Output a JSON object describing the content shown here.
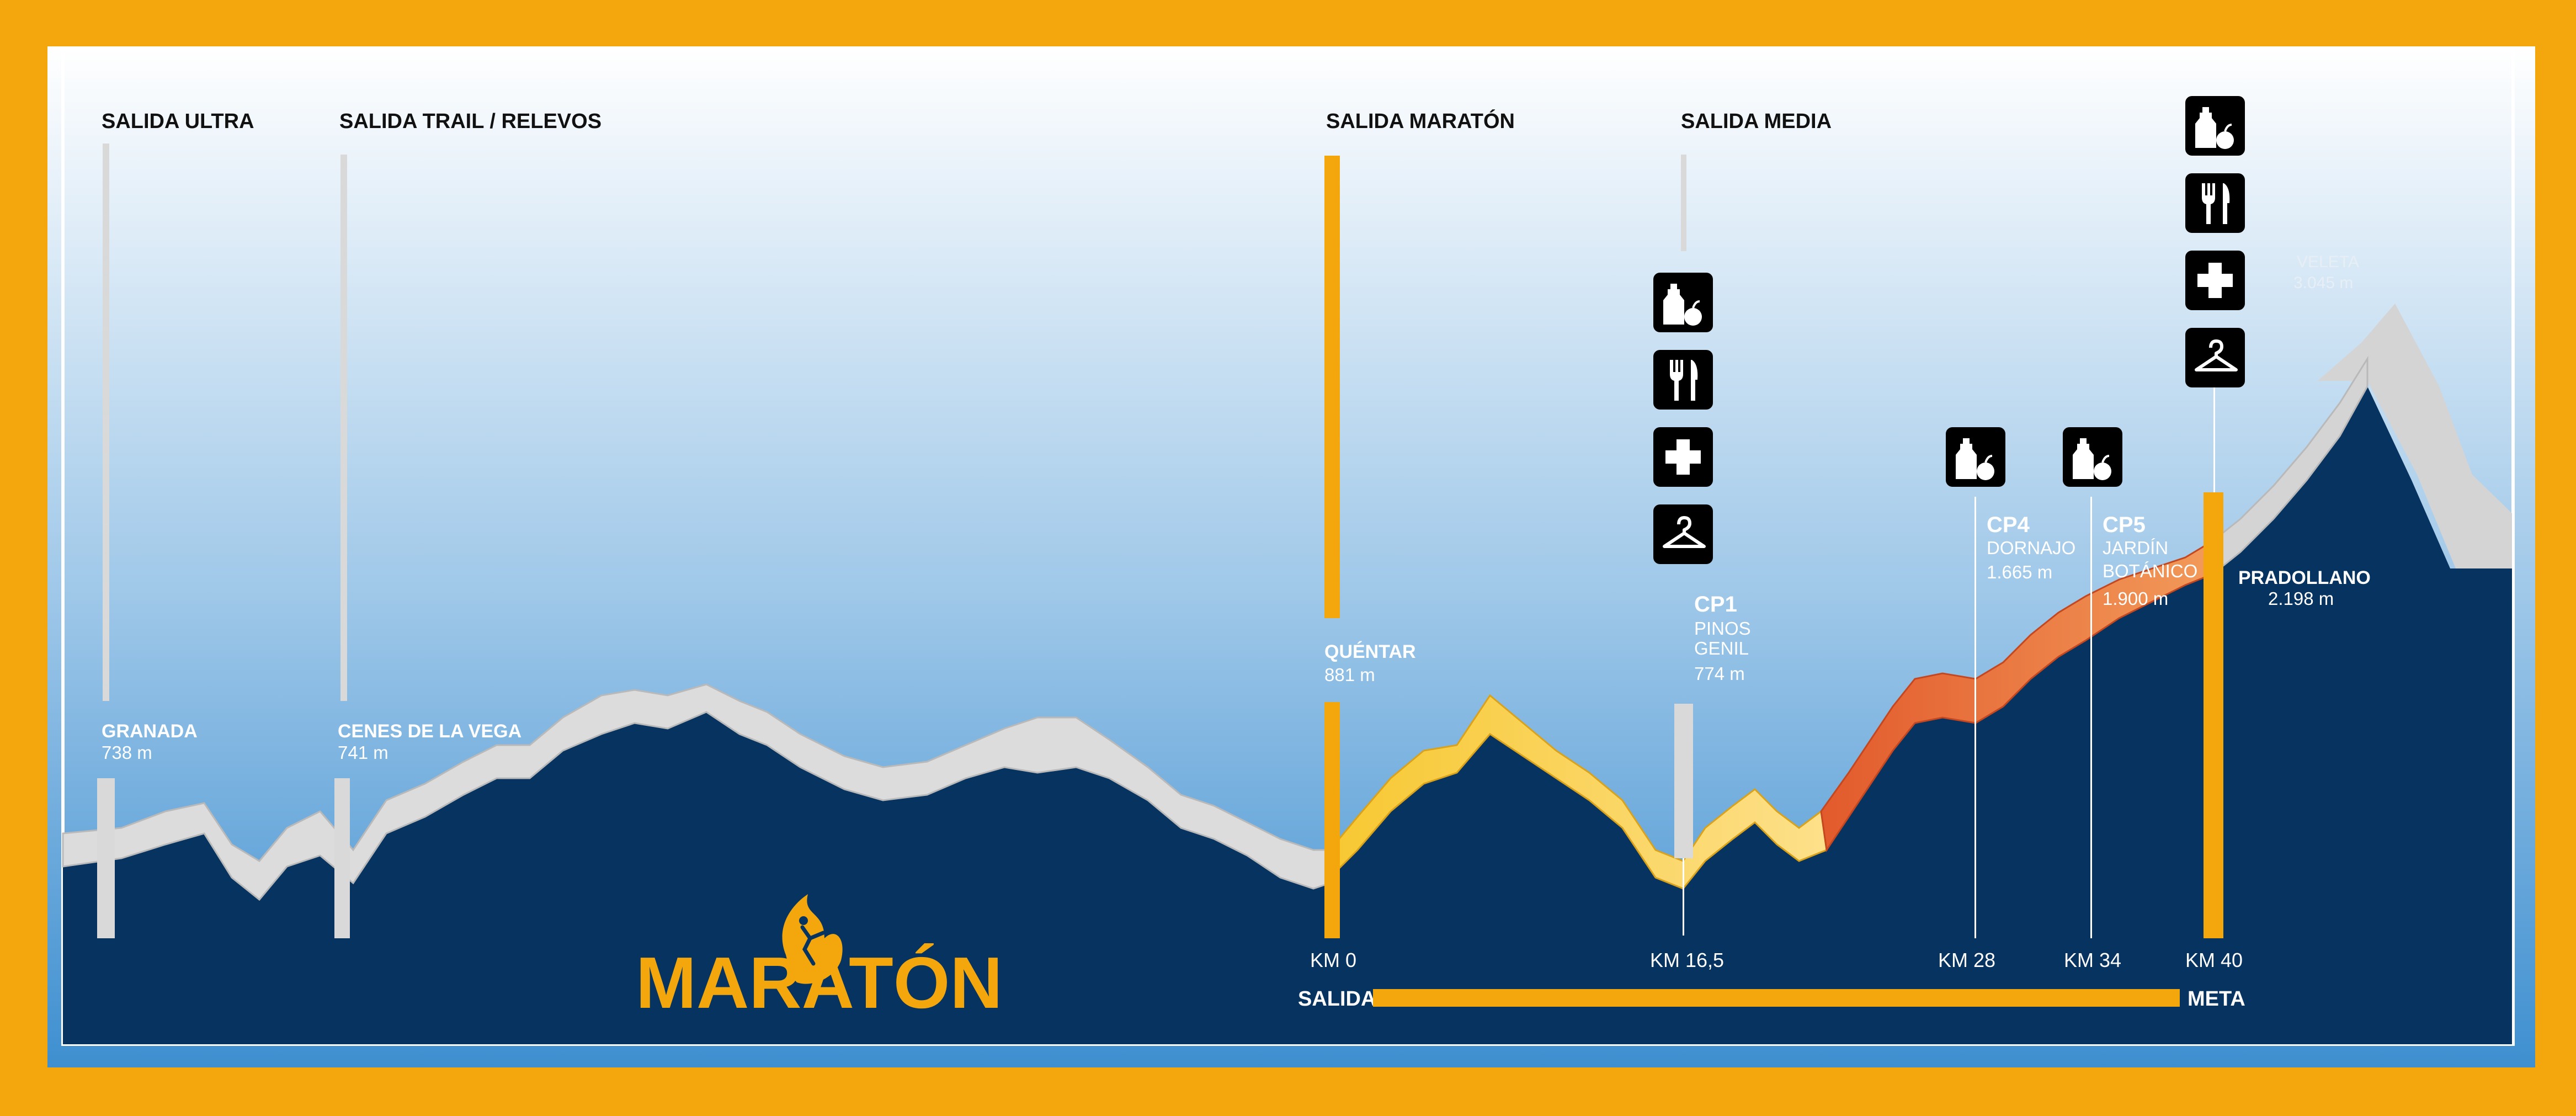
{
  "colors": {
    "frame": "#f3a70d",
    "sky_top": "#ffffff",
    "sky_bottom": "#3e8fd0",
    "mountain": "#06335f",
    "ridge_grey": "#d8d8d8",
    "ridge_yellow": "#f9d34a",
    "ridge_orange": "#e9804a",
    "marker_grey": "#d9d9d9",
    "marker_orange": "#f3a70d",
    "icon_bg": "#000000"
  },
  "start_labels": {
    "ultra": "SALIDA ULTRA",
    "trail": "SALIDA TRAIL / RELEVOS",
    "maraton": "SALIDA MARATÓN",
    "media": "SALIDA MEDIA"
  },
  "locations": {
    "granada": {
      "name": "GRANADA",
      "alt": "738 m"
    },
    "cenes": {
      "name": "CENES DE LA VEGA",
      "alt": "741 m"
    },
    "quentar": {
      "name": "QUÉNTAR",
      "alt": "881 m"
    },
    "cp1": {
      "code": "CP1",
      "name1": "PINOS",
      "name2": "GENIL",
      "alt": "774 m"
    },
    "cp4": {
      "code": "CP4",
      "name1": "DORNAJO",
      "alt": "1.665 m"
    },
    "cp5": {
      "code": "CP5",
      "name1": "JARDÍN",
      "name2": "BOTÁNICO",
      "alt": "1.900 m"
    },
    "pradollano": {
      "name": "PRADOLLANO",
      "alt": "2.198 m"
    },
    "veleta": {
      "name": "VELETA",
      "alt": "3.045 m"
    }
  },
  "km_markers": [
    "KM 0",
    "KM 16,5",
    "KM 28",
    "KM 34",
    "KM 40"
  ],
  "route_bar": {
    "start": "SALIDA",
    "end": "META"
  },
  "logo": {
    "text": "MARATÓN",
    "icon": "runner-flame-icon"
  },
  "aid_icons": {
    "cp1": [
      "drink-food-icon",
      "cutlery-icon",
      "first-aid-icon",
      "hanger-icon"
    ],
    "cp4": [
      "drink-food-icon"
    ],
    "cp5": [
      "drink-food-icon"
    ],
    "finish": [
      "drink-food-icon",
      "cutlery-icon",
      "first-aid-icon",
      "hanger-icon"
    ]
  }
}
